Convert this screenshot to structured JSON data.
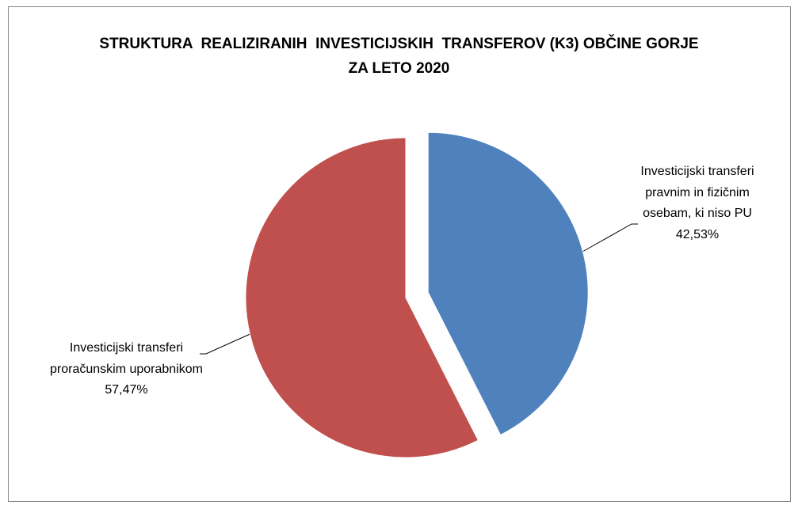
{
  "chart_data": {
    "type": "pie",
    "title": "STRUKTURA  REALIZIRANIH  INVESTICIJSKIH  TRANSFEROV (K3) OBČINE GORJE ZA LETO 2020",
    "categories": [
      "Investicijski transferi pravnim in fizičnim osebam, ki niso PU",
      "Investicijski transferi proračunskim uporabnikom"
    ],
    "values": [
      42.53,
      57.47
    ],
    "value_labels": [
      "42,53%",
      "57,47%"
    ],
    "colors": [
      "#4f81bd",
      "#c0504d"
    ]
  }
}
